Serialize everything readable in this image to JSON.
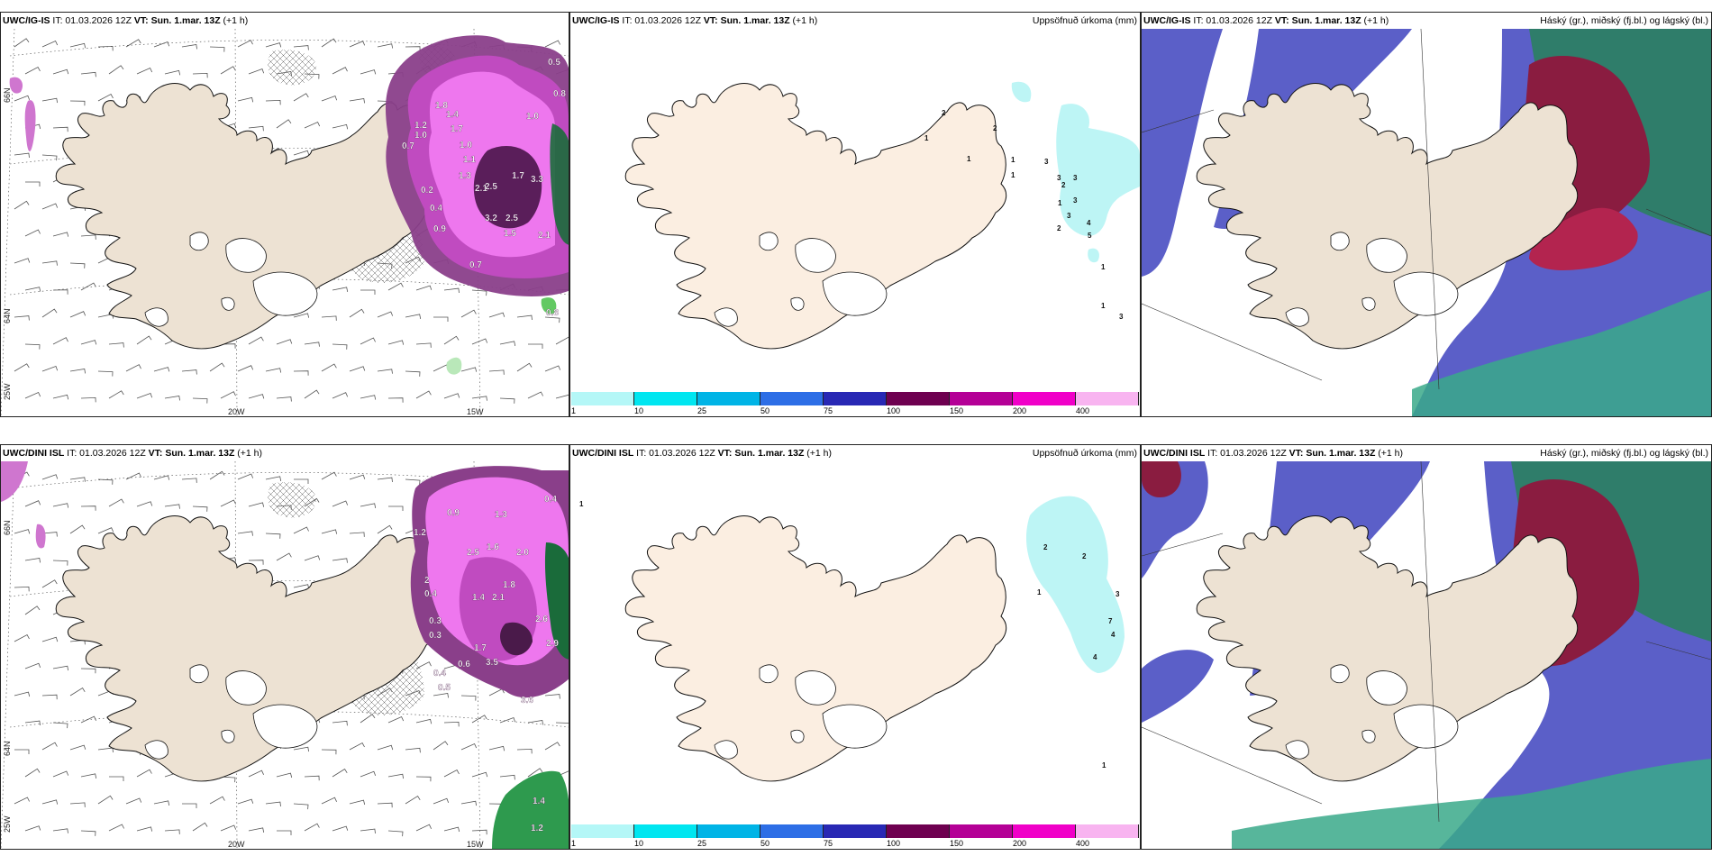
{
  "rows": [
    {
      "model": "UWC/IG-IS",
      "it_label": "IT: 01.03.2026 12Z",
      "vt_label": "VT: Sun. 1.mar. 13Z",
      "lead": "(+1 h)"
    },
    {
      "model": "UWC/DINI ISL",
      "it_label": "IT: 01.03.2026 12Z",
      "vt_label": "VT: Sun. 1.mar. 13Z",
      "lead": "(+1 h)"
    }
  ],
  "panel_titles": {
    "precip": "Uppsöfnuð úrkoma (mm)",
    "clouds": "Háský (gr.), miðský (fj.bl.) og lágský (bl.)"
  },
  "axis_labels": {
    "lon_20w": "20W",
    "lon_15w": "15W",
    "lat_64n": "64N",
    "lat_66n": "66N",
    "lon_25w": "25W"
  },
  "colorbar": {
    "ticks": [
      "1",
      "10",
      "25",
      "50",
      "75",
      "100",
      "150",
      "200",
      "400"
    ],
    "colors": [
      "#b4f7f7",
      "#00e6f0",
      "#00b4e6",
      "#2d6ee6",
      "#2828b4",
      "#6e0050",
      "#b40096",
      "#f000c8",
      "#f8b4f0"
    ]
  },
  "precip_labels_top": [
    "2",
    "1",
    "2",
    "1",
    "1",
    "1",
    "3",
    "3",
    "3",
    "2",
    "3",
    "1",
    "3",
    "2",
    "4",
    "5",
    "1",
    "1",
    "3"
  ],
  "precip_labels_bottom": [
    "1",
    "2",
    "2",
    "1",
    "3",
    "7",
    "4",
    "4",
    "1"
  ],
  "wind_precip_labels_top": [
    "0.5",
    "0.8",
    "1.0",
    "1.8",
    "1.4",
    "1.2",
    "1.0",
    "0.7",
    "1.7",
    "1.0",
    "1.1",
    "1.3",
    "0.2",
    "2.1",
    "2.5",
    "1.7",
    "3.3",
    "0.4",
    "3.2",
    "2.5",
    "0.9",
    "2.1",
    "1.5",
    "0.7",
    "0.8"
  ],
  "wind_precip_labels_bottom": [
    "0.4",
    "0.9",
    "1.3",
    "1.2",
    "2.5",
    "1.6",
    "2.0",
    "2",
    "1.8",
    "0.4",
    "1.4",
    "2.1",
    "2.6",
    "0.3",
    "0.3",
    "1.7",
    "3.5",
    "2.9",
    "0.6",
    "0.4",
    "0.5",
    "3.6",
    "1.4",
    "1.2"
  ]
}
